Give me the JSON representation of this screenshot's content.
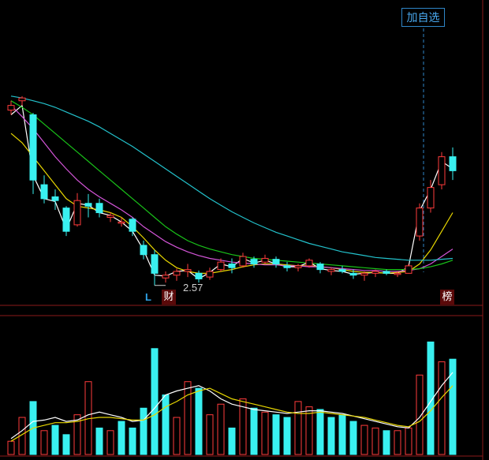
{
  "toolbar": {
    "add_watchlist": "加自选"
  },
  "markers": {
    "low_flag": "L",
    "low_value": "2.57",
    "earnings_badge": "财",
    "billboard_badge": "榜"
  },
  "chart_data": [
    {
      "type": "candlestick",
      "title": "",
      "low_annotation": {
        "index": 13,
        "value": 2.57
      },
      "ohlc": [
        [
          4.45,
          4.55,
          4.4,
          4.5
        ],
        [
          4.55,
          4.6,
          4.5,
          4.58
        ],
        [
          4.4,
          4.42,
          3.55,
          3.7
        ],
        [
          3.65,
          3.75,
          3.45,
          3.5
        ],
        [
          3.52,
          3.6,
          3.38,
          3.48
        ],
        [
          3.4,
          3.42,
          3.1,
          3.15
        ],
        [
          3.22,
          3.56,
          3.2,
          3.48
        ],
        [
          3.45,
          3.55,
          3.3,
          3.42
        ],
        [
          3.45,
          3.5,
          3.3,
          3.35
        ],
        [
          3.3,
          3.35,
          3.25,
          3.32
        ],
        [
          3.25,
          3.3,
          3.2,
          3.25
        ],
        [
          3.28,
          3.3,
          3.1,
          3.15
        ],
        [
          3.0,
          3.05,
          2.85,
          2.9
        ],
        [
          2.9,
          2.95,
          2.57,
          2.7
        ],
        [
          2.65,
          2.72,
          2.6,
          2.68
        ],
        [
          2.68,
          2.75,
          2.62,
          2.72
        ],
        [
          2.72,
          2.8,
          2.66,
          2.74
        ],
        [
          2.7,
          2.73,
          2.6,
          2.64
        ],
        [
          2.66,
          2.76,
          2.63,
          2.72
        ],
        [
          2.74,
          2.86,
          2.72,
          2.82
        ],
        [
          2.8,
          2.86,
          2.7,
          2.76
        ],
        [
          2.78,
          2.92,
          2.76,
          2.88
        ],
        [
          2.85,
          2.88,
          2.76,
          2.8
        ],
        [
          2.82,
          2.9,
          2.8,
          2.86
        ],
        [
          2.85,
          2.88,
          2.76,
          2.8
        ],
        [
          2.78,
          2.82,
          2.72,
          2.76
        ],
        [
          2.76,
          2.8,
          2.72,
          2.78
        ],
        [
          2.78,
          2.86,
          2.76,
          2.84
        ],
        [
          2.8,
          2.82,
          2.7,
          2.74
        ],
        [
          2.72,
          2.76,
          2.68,
          2.74
        ],
        [
          2.74,
          2.78,
          2.7,
          2.72
        ],
        [
          2.7,
          2.74,
          2.64,
          2.68
        ],
        [
          2.68,
          2.72,
          2.62,
          2.7
        ],
        [
          2.7,
          2.74,
          2.66,
          2.72
        ],
        [
          2.72,
          2.74,
          2.68,
          2.7
        ],
        [
          2.7,
          2.72,
          2.66,
          2.7
        ],
        [
          2.7,
          2.8,
          2.7,
          2.78
        ],
        [
          3.1,
          3.45,
          3.05,
          3.4
        ],
        [
          3.4,
          3.7,
          3.35,
          3.62
        ],
        [
          3.65,
          4.0,
          3.6,
          3.95
        ],
        [
          3.95,
          4.05,
          3.7,
          3.8
        ]
      ],
      "moving_averages": [
        {
          "color": "#ffffff",
          "values": [
            4.4,
            4.5,
            3.75,
            3.5,
            3.47,
            3.17,
            3.45,
            3.43,
            3.35,
            3.32,
            3.25,
            3.15,
            2.95,
            2.68,
            2.67,
            2.72,
            2.73,
            2.64,
            2.71,
            2.8,
            2.77,
            2.86,
            2.81,
            2.84,
            2.8,
            2.77,
            2.77,
            2.82,
            2.75,
            2.73,
            2.72,
            2.69,
            2.7,
            2.71,
            2.7,
            2.7,
            2.77,
            3.37,
            3.6,
            3.9,
            3.82
          ]
        },
        {
          "color": "#e8d700",
          "values": [
            4.2,
            4.1,
            3.95,
            3.8,
            3.65,
            3.5,
            3.42,
            3.4,
            3.38,
            3.35,
            3.3,
            3.2,
            3.08,
            2.95,
            2.84,
            2.76,
            2.72,
            2.7,
            2.7,
            2.72,
            2.74,
            2.77,
            2.79,
            2.8,
            2.8,
            2.79,
            2.78,
            2.78,
            2.77,
            2.76,
            2.74,
            2.72,
            2.71,
            2.71,
            2.7,
            2.71,
            2.72,
            2.8,
            2.95,
            3.15,
            3.35
          ]
        },
        {
          "color": "#d455d8",
          "values": [
            4.5,
            4.38,
            4.25,
            4.1,
            3.95,
            3.82,
            3.7,
            3.6,
            3.52,
            3.45,
            3.38,
            3.3,
            3.2,
            3.12,
            3.04,
            2.98,
            2.93,
            2.89,
            2.86,
            2.84,
            2.82,
            2.81,
            2.8,
            2.79,
            2.79,
            2.78,
            2.78,
            2.77,
            2.77,
            2.76,
            2.75,
            2.74,
            2.73,
            2.73,
            2.72,
            2.72,
            2.73,
            2.75,
            2.8,
            2.88,
            2.96
          ]
        },
        {
          "color": "#19c219",
          "values": [
            4.55,
            4.48,
            4.4,
            4.3,
            4.2,
            4.1,
            4.0,
            3.9,
            3.8,
            3.7,
            3.6,
            3.5,
            3.4,
            3.3,
            3.2,
            3.12,
            3.05,
            3.0,
            2.96,
            2.93,
            2.9,
            2.88,
            2.86,
            2.85,
            2.84,
            2.83,
            2.82,
            2.81,
            2.8,
            2.79,
            2.78,
            2.77,
            2.76,
            2.75,
            2.74,
            2.74,
            2.74,
            2.75,
            2.77,
            2.8,
            2.84
          ]
        },
        {
          "color": "#23c2cc",
          "values": [
            4.6,
            4.58,
            4.55,
            4.52,
            4.48,
            4.43,
            4.38,
            4.33,
            4.27,
            4.2,
            4.13,
            4.06,
            3.98,
            3.9,
            3.82,
            3.74,
            3.66,
            3.58,
            3.5,
            3.43,
            3.36,
            3.3,
            3.24,
            3.19,
            3.14,
            3.1,
            3.06,
            3.02,
            2.99,
            2.96,
            2.93,
            2.91,
            2.89,
            2.87,
            2.86,
            2.85,
            2.84,
            2.84,
            2.84,
            2.85,
            2.86
          ]
        }
      ]
    },
    {
      "type": "bar",
      "title": "",
      "values": [
        10,
        28,
        40,
        18,
        22,
        15,
        30,
        55,
        20,
        18,
        25,
        20,
        35,
        80,
        45,
        28,
        55,
        50,
        30,
        38,
        20,
        42,
        35,
        32,
        30,
        28,
        40,
        36,
        34,
        28,
        30,
        25,
        22,
        20,
        18,
        18,
        20,
        60,
        85,
        70,
        72
      ],
      "rising": [
        true,
        true,
        false,
        true,
        false,
        false,
        true,
        true,
        false,
        true,
        false,
        false,
        false,
        false,
        false,
        true,
        true,
        false,
        true,
        true,
        false,
        true,
        false,
        true,
        false,
        false,
        true,
        true,
        false,
        false,
        false,
        false,
        true,
        true,
        false,
        true,
        true,
        true,
        false,
        true,
        false
      ],
      "moving_averages": [
        {
          "color": "#ffffff",
          "values": [
            12,
            18,
            25,
            26,
            28,
            25,
            26,
            30,
            32,
            30,
            28,
            25,
            26,
            35,
            45,
            48,
            50,
            52,
            48,
            42,
            38,
            36,
            34,
            33,
            32,
            31,
            32,
            33,
            33,
            32,
            31,
            29,
            27,
            25,
            23,
            21,
            20,
            28,
            40,
            52,
            62
          ]
        },
        {
          "color": "#e8d700",
          "values": [
            10,
            15,
            20,
            22,
            24,
            24,
            25,
            27,
            28,
            28,
            27,
            26,
            26,
            30,
            36,
            40,
            45,
            48,
            50,
            46,
            42,
            40,
            38,
            36,
            34,
            32,
            31,
            31,
            32,
            31,
            30,
            29,
            28,
            26,
            24,
            22,
            21,
            25,
            33,
            43,
            52
          ]
        }
      ]
    }
  ]
}
